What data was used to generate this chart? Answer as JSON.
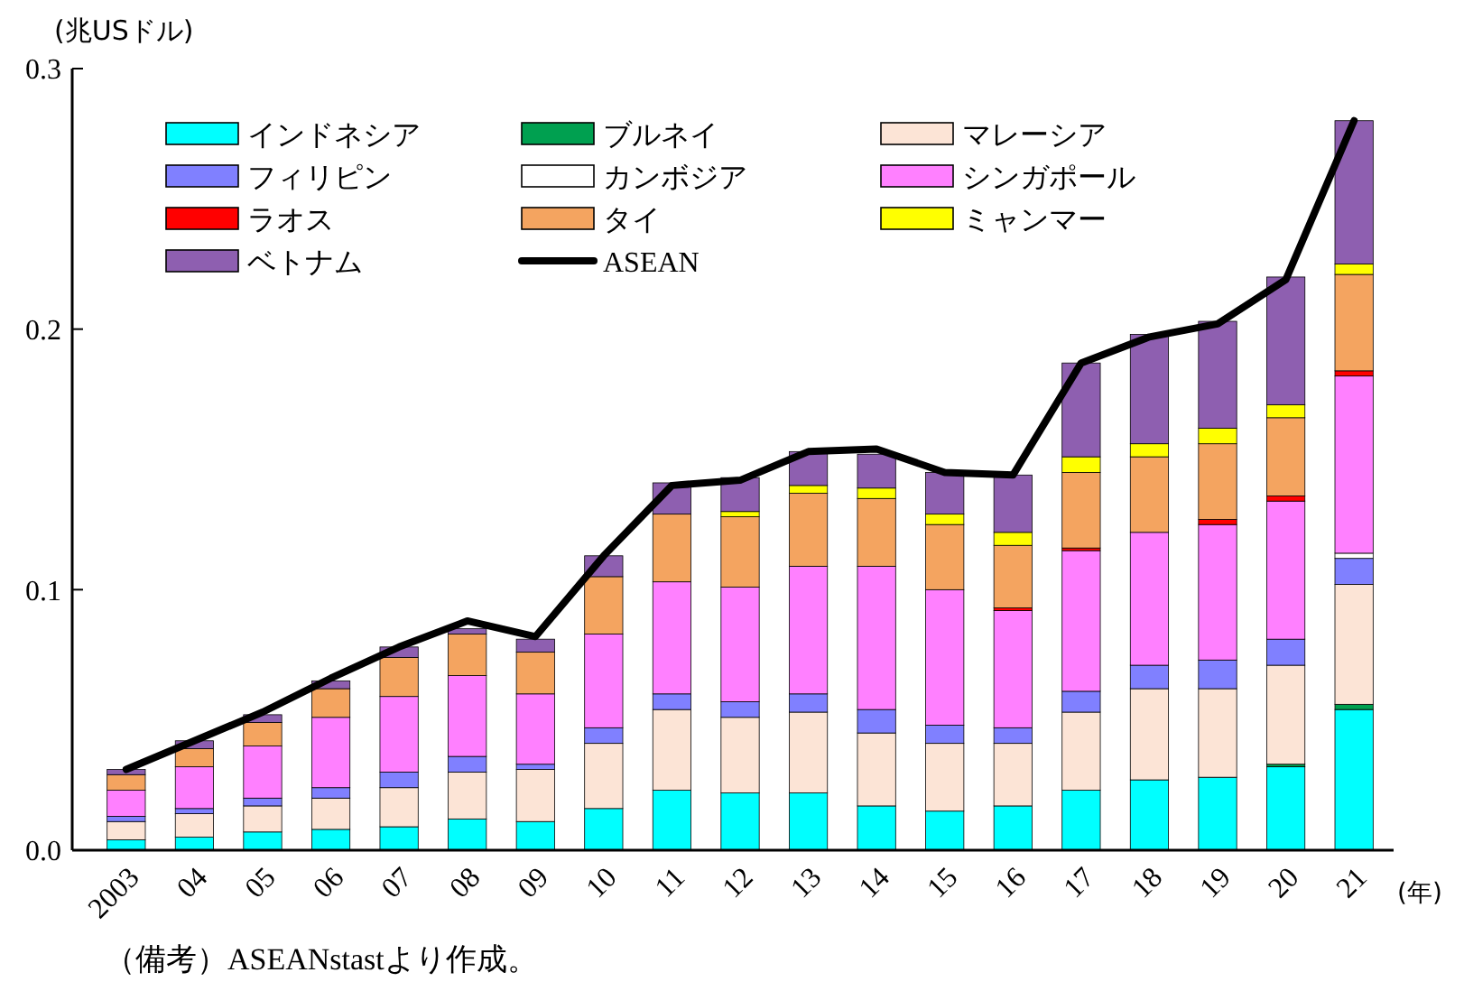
{
  "chart_data": {
    "type": "bar",
    "stacked": true,
    "ylabel": "(兆USドル)",
    "xlabel": "(年)",
    "annotations": [
      "（備考）ASEANstastより作成。"
    ],
    "categories": [
      "2003",
      "04",
      "05",
      "06",
      "07",
      "08",
      "09",
      "10",
      "11",
      "12",
      "13",
      "14",
      "15",
      "16",
      "17",
      "18",
      "19",
      "20",
      "21"
    ],
    "ylim": [
      0,
      0.3
    ],
    "yticks": [
      {
        "value": 0,
        "label": "0.0"
      },
      0.1,
      0.2,
      0.3
    ],
    "grid": false,
    "legend": "top",
    "marker": "none",
    "line_style": "solid",
    "series": [
      {
        "name": "インドネシア",
        "color": "#00ffff",
        "values": [
          0.004,
          0.005,
          0.007,
          0.008,
          0.009,
          0.012,
          0.011,
          0.016,
          0.023,
          0.022,
          0.022,
          0.017,
          0.015,
          0.017,
          0.023,
          0.027,
          0.028,
          0.032,
          0.054
        ]
      },
      {
        "name": "ブルネイ",
        "color": "#00a050",
        "values": [
          0,
          0,
          0,
          0,
          0,
          0,
          0,
          0,
          0,
          0,
          0,
          0,
          0,
          0,
          0,
          0,
          0,
          0.001,
          0.002
        ]
      },
      {
        "name": "マレーシア",
        "color": "#fce4d6",
        "values": [
          0.007,
          0.009,
          0.01,
          0.012,
          0.015,
          0.018,
          0.02,
          0.025,
          0.031,
          0.029,
          0.031,
          0.028,
          0.026,
          0.024,
          0.03,
          0.035,
          0.034,
          0.038,
          0.046
        ]
      },
      {
        "name": "フィリピン",
        "color": "#8080ff",
        "values": [
          0.002,
          0.002,
          0.003,
          0.004,
          0.006,
          0.006,
          0.002,
          0.006,
          0.006,
          0.006,
          0.007,
          0.009,
          0.007,
          0.006,
          0.008,
          0.009,
          0.011,
          0.01,
          0.01
        ]
      },
      {
        "name": "カンボジア",
        "color": "#ffffff",
        "values": [
          0,
          0,
          0,
          0,
          0,
          0,
          0,
          0,
          0,
          0,
          0,
          0,
          0,
          0,
          0,
          0,
          0,
          0,
          0.002
        ]
      },
      {
        "name": "シンガポール",
        "color": "#ff80ff",
        "values": [
          0.01,
          0.016,
          0.02,
          0.027,
          0.029,
          0.031,
          0.027,
          0.036,
          0.043,
          0.044,
          0.049,
          0.055,
          0.052,
          0.045,
          0.054,
          0.051,
          0.052,
          0.053,
          0.068
        ]
      },
      {
        "name": "ラオス",
        "color": "#ff0000",
        "values": [
          0,
          0,
          0,
          0,
          0,
          0,
          0,
          0,
          0,
          0,
          0,
          0,
          0,
          0.001,
          0.001,
          0,
          0.002,
          0.002,
          0.002
        ]
      },
      {
        "name": "タイ",
        "color": "#f4a460",
        "values": [
          0.006,
          0.007,
          0.009,
          0.011,
          0.015,
          0.016,
          0.016,
          0.022,
          0.026,
          0.027,
          0.028,
          0.026,
          0.025,
          0.024,
          0.029,
          0.029,
          0.029,
          0.03,
          0.037
        ]
      },
      {
        "name": "ミャンマー",
        "color": "#ffff00",
        "values": [
          0,
          0,
          0,
          0,
          0,
          0,
          0,
          0,
          0,
          0.002,
          0.003,
          0.004,
          0.004,
          0.005,
          0.006,
          0.005,
          0.006,
          0.005,
          0.004
        ]
      },
      {
        "name": "ベトナム",
        "color": "#8e5fb0",
        "values": [
          0.002,
          0.003,
          0.003,
          0.003,
          0.004,
          0.002,
          0.005,
          0.008,
          0.012,
          0.013,
          0.013,
          0.013,
          0.016,
          0.022,
          0.036,
          0.042,
          0.041,
          0.049,
          0.055
        ]
      },
      {
        "name": "ASEAN",
        "type": "line",
        "color": "#000000",
        "values": [
          0.031,
          0.042,
          0.053,
          0.066,
          0.078,
          0.088,
          0.082,
          0.113,
          0.14,
          0.142,
          0.153,
          0.154,
          0.145,
          0.144,
          0.187,
          0.197,
          0.202,
          0.219,
          0.28
        ]
      }
    ]
  }
}
